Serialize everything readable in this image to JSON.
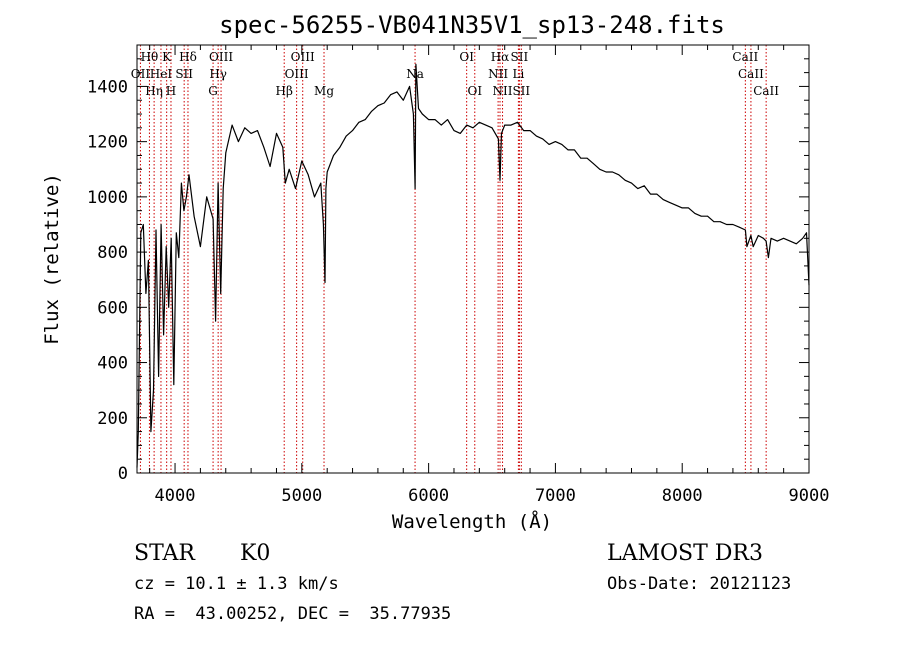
{
  "chart_data": {
    "type": "line",
    "title": "spec-56255-VB041N35V1_sp13-248.fits",
    "xlabel": "Wavelength (Å)",
    "ylabel": "Flux (relative)",
    "xlim": [
      3700,
      9000
    ],
    "ylim": [
      0,
      1550
    ],
    "xticks": [
      {
        "v": 4000,
        "label": "4000"
      },
      {
        "v": 5000,
        "label": "5000"
      },
      {
        "v": 6000,
        "label": "6000"
      },
      {
        "v": 7000,
        "label": "7000"
      },
      {
        "v": 8000,
        "label": "8000"
      },
      {
        "v": 9000,
        "label": "9000"
      }
    ],
    "yticks": [
      {
        "v": 0,
        "label": "0"
      },
      {
        "v": 200,
        "label": "200"
      },
      {
        "v": 400,
        "label": "400"
      },
      {
        "v": 600,
        "label": "600"
      },
      {
        "v": 800,
        "label": "800"
      },
      {
        "v": 1000,
        "label": "1000"
      },
      {
        "v": 1200,
        "label": "1200"
      },
      {
        "v": 1400,
        "label": "1400"
      }
    ],
    "grid": false,
    "series": [
      {
        "color": "#000000",
        "x": [
          3700,
          3710,
          3730,
          3750,
          3770,
          3790,
          3810,
          3830,
          3850,
          3870,
          3890,
          3910,
          3930,
          3950,
          3970,
          3990,
          4010,
          4030,
          4050,
          4070,
          4090,
          4110,
          4150,
          4200,
          4250,
          4300,
          4320,
          4340,
          4360,
          4380,
          4400,
          4450,
          4500,
          4550,
          4600,
          4650,
          4700,
          4750,
          4800,
          4850,
          4870,
          4900,
          4950,
          5000,
          5050,
          5100,
          5150,
          5170,
          5183,
          5190,
          5200,
          5250,
          5300,
          5350,
          5400,
          5450,
          5500,
          5550,
          5600,
          5650,
          5700,
          5750,
          5800,
          5850,
          5880,
          5893,
          5900,
          5920,
          5950,
          6000,
          6050,
          6100,
          6150,
          6200,
          6250,
          6300,
          6350,
          6400,
          6450,
          6500,
          6550,
          6563,
          6575,
          6600,
          6650,
          6700,
          6750,
          6800,
          6850,
          6900,
          6950,
          7000,
          7050,
          7100,
          7150,
          7200,
          7250,
          7300,
          7350,
          7400,
          7450,
          7500,
          7550,
          7600,
          7650,
          7700,
          7750,
          7800,
          7850,
          7900,
          7950,
          8000,
          8050,
          8100,
          8150,
          8200,
          8250,
          8300,
          8350,
          8400,
          8450,
          8498,
          8510,
          8542,
          8560,
          8600,
          8640,
          8662,
          8680,
          8700,
          8750,
          8800,
          8850,
          8900,
          8950,
          8980,
          9000
        ],
        "y": [
          20,
          150,
          870,
          900,
          650,
          770,
          150,
          300,
          880,
          350,
          900,
          500,
          820,
          600,
          850,
          320,
          870,
          780,
          1050,
          950,
          1000,
          1080,
          930,
          820,
          1000,
          920,
          550,
          1050,
          650,
          1030,
          1160,
          1260,
          1200,
          1250,
          1230,
          1240,
          1180,
          1110,
          1230,
          1180,
          1050,
          1100,
          1030,
          1130,
          1080,
          1000,
          1050,
          900,
          690,
          1030,
          1090,
          1150,
          1180,
          1220,
          1240,
          1270,
          1280,
          1310,
          1330,
          1340,
          1370,
          1380,
          1350,
          1400,
          1300,
          1030,
          1480,
          1320,
          1300,
          1280,
          1280,
          1260,
          1280,
          1240,
          1230,
          1260,
          1250,
          1270,
          1260,
          1250,
          1210,
          1060,
          1230,
          1260,
          1260,
          1270,
          1240,
          1240,
          1220,
          1210,
          1190,
          1200,
          1190,
          1170,
          1170,
          1140,
          1140,
          1120,
          1100,
          1090,
          1090,
          1080,
          1060,
          1050,
          1030,
          1040,
          1010,
          1010,
          990,
          980,
          970,
          960,
          960,
          940,
          930,
          930,
          910,
          910,
          900,
          900,
          890,
          880,
          820,
          860,
          820,
          860,
          850,
          840,
          780,
          850,
          840,
          850,
          840,
          830,
          850,
          870,
          680
        ]
      }
    ],
    "lines": [
      {
        "wl": 3727,
        "up": "OII"
      },
      {
        "wl": 3798,
        "up": "Hθ"
      },
      {
        "wl": 3835,
        "up": "Hη"
      },
      {
        "wl": 3889,
        "up": "HeI"
      },
      {
        "wl": 3934,
        "up": "K"
      },
      {
        "wl": 3968,
        "up": "H"
      },
      {
        "wl": 4072,
        "up": "SII"
      },
      {
        "wl": 4102,
        "up": "Hδ"
      },
      {
        "wl": 4300,
        "up": "G"
      },
      {
        "wl": 4340,
        "up": "Hγ"
      },
      {
        "wl": 4363,
        "up": "OIII"
      },
      {
        "wl": 4861,
        "up": "Hβ"
      },
      {
        "wl": 4959,
        "up": "OIII"
      },
      {
        "wl": 5007,
        "up": "OIII"
      },
      {
        "wl": 5175,
        "up": "Mg"
      },
      {
        "wl": 5893,
        "up": "Na"
      },
      {
        "wl": 6300,
        "up": "OI"
      },
      {
        "wl": 6364,
        "up": "OI"
      },
      {
        "wl": 6548,
        "up": "NII"
      },
      {
        "wl": 6563,
        "up": "Hα"
      },
      {
        "wl": 6583,
        "up": "NII"
      },
      {
        "wl": 6708,
        "up": "Li"
      },
      {
        "wl": 6716,
        "up": "SII"
      },
      {
        "wl": 6731,
        "up": "SII"
      },
      {
        "wl": 8498,
        "up": "CaII"
      },
      {
        "wl": 8542,
        "up": "CaII"
      },
      {
        "wl": 8662,
        "up": "CaII"
      }
    ],
    "line_labels": [
      {
        "text": "Hθ",
        "wl": 3798,
        "row": 1
      },
      {
        "text": "K",
        "wl": 3934,
        "row": 1
      },
      {
        "text": "Hδ",
        "wl": 4102,
        "row": 1
      },
      {
        "text": "OIII",
        "wl": 4363,
        "row": 1
      },
      {
        "text": "OIII",
        "wl": 5007,
        "row": 1
      },
      {
        "text": "OI",
        "wl": 6300,
        "row": 1
      },
      {
        "text": "Hα",
        "wl": 6563,
        "row": 1
      },
      {
        "text": "SII",
        "wl": 6716,
        "row": 1
      },
      {
        "text": "CaII",
        "wl": 8498,
        "row": 1
      },
      {
        "text": "OII",
        "wl": 3727,
        "row": 2
      },
      {
        "text": "HeI",
        "wl": 3889,
        "row": 2
      },
      {
        "text": "SII",
        "wl": 4072,
        "row": 2
      },
      {
        "text": "Hγ",
        "wl": 4340,
        "row": 2
      },
      {
        "text": "OIII",
        "wl": 4959,
        "row": 2
      },
      {
        "text": "Na",
        "wl": 5893,
        "row": 2
      },
      {
        "text": "NII",
        "wl": 6548,
        "row": 2
      },
      {
        "text": "Li",
        "wl": 6708,
        "row": 2
      },
      {
        "text": "CaII",
        "wl": 8542,
        "row": 2
      },
      {
        "text": "Hη",
        "wl": 3835,
        "row": 3
      },
      {
        "text": "H",
        "wl": 3968,
        "row": 3
      },
      {
        "text": "G",
        "wl": 4300,
        "row": 3
      },
      {
        "text": "Hβ",
        "wl": 4861,
        "row": 3
      },
      {
        "text": "Mg",
        "wl": 5175,
        "row": 3
      },
      {
        "text": "OI",
        "wl": 6364,
        "row": 3
      },
      {
        "text": "NII",
        "wl": 6583,
        "row": 3
      },
      {
        "text": "SII",
        "wl": 6731,
        "row": 3
      },
      {
        "text": "CaII",
        "wl": 8662,
        "row": 3
      }
    ],
    "annotations": {
      "class": "STAR",
      "subclass": "K0",
      "survey": "LAMOST DR3",
      "redshift": "cz = 10.1 ± 1.3 km/s",
      "obs_date": "Obs-Date: 20121123",
      "coords": "RA =  43.00252, DEC =  35.77935"
    },
    "line_color": "#cc0000"
  }
}
